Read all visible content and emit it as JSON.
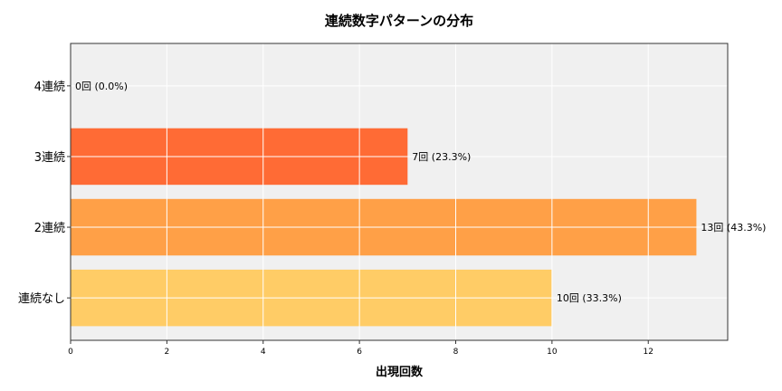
{
  "chart_data": {
    "type": "bar",
    "orientation": "horizontal",
    "title": "連続数字パターンの分布",
    "xlabel": "出現回数",
    "ylabel": "",
    "categories": [
      "連続なし",
      "2連続",
      "3連続",
      "4連続"
    ],
    "values": [
      10,
      13,
      7,
      0
    ],
    "data_labels": [
      "10回 (33.3%)",
      "13回 (43.3%)",
      "7回 (23.3%)",
      "0回 (0.0%)"
    ],
    "colors": [
      "#FFCC66",
      "#FFA047",
      "#FF6B35",
      "#FF3B1F"
    ],
    "xlim": [
      0,
      13.65
    ],
    "xticks": [
      0,
      2,
      4,
      6,
      8,
      10,
      12
    ],
    "grid": true,
    "background": "#F0F0F0"
  }
}
